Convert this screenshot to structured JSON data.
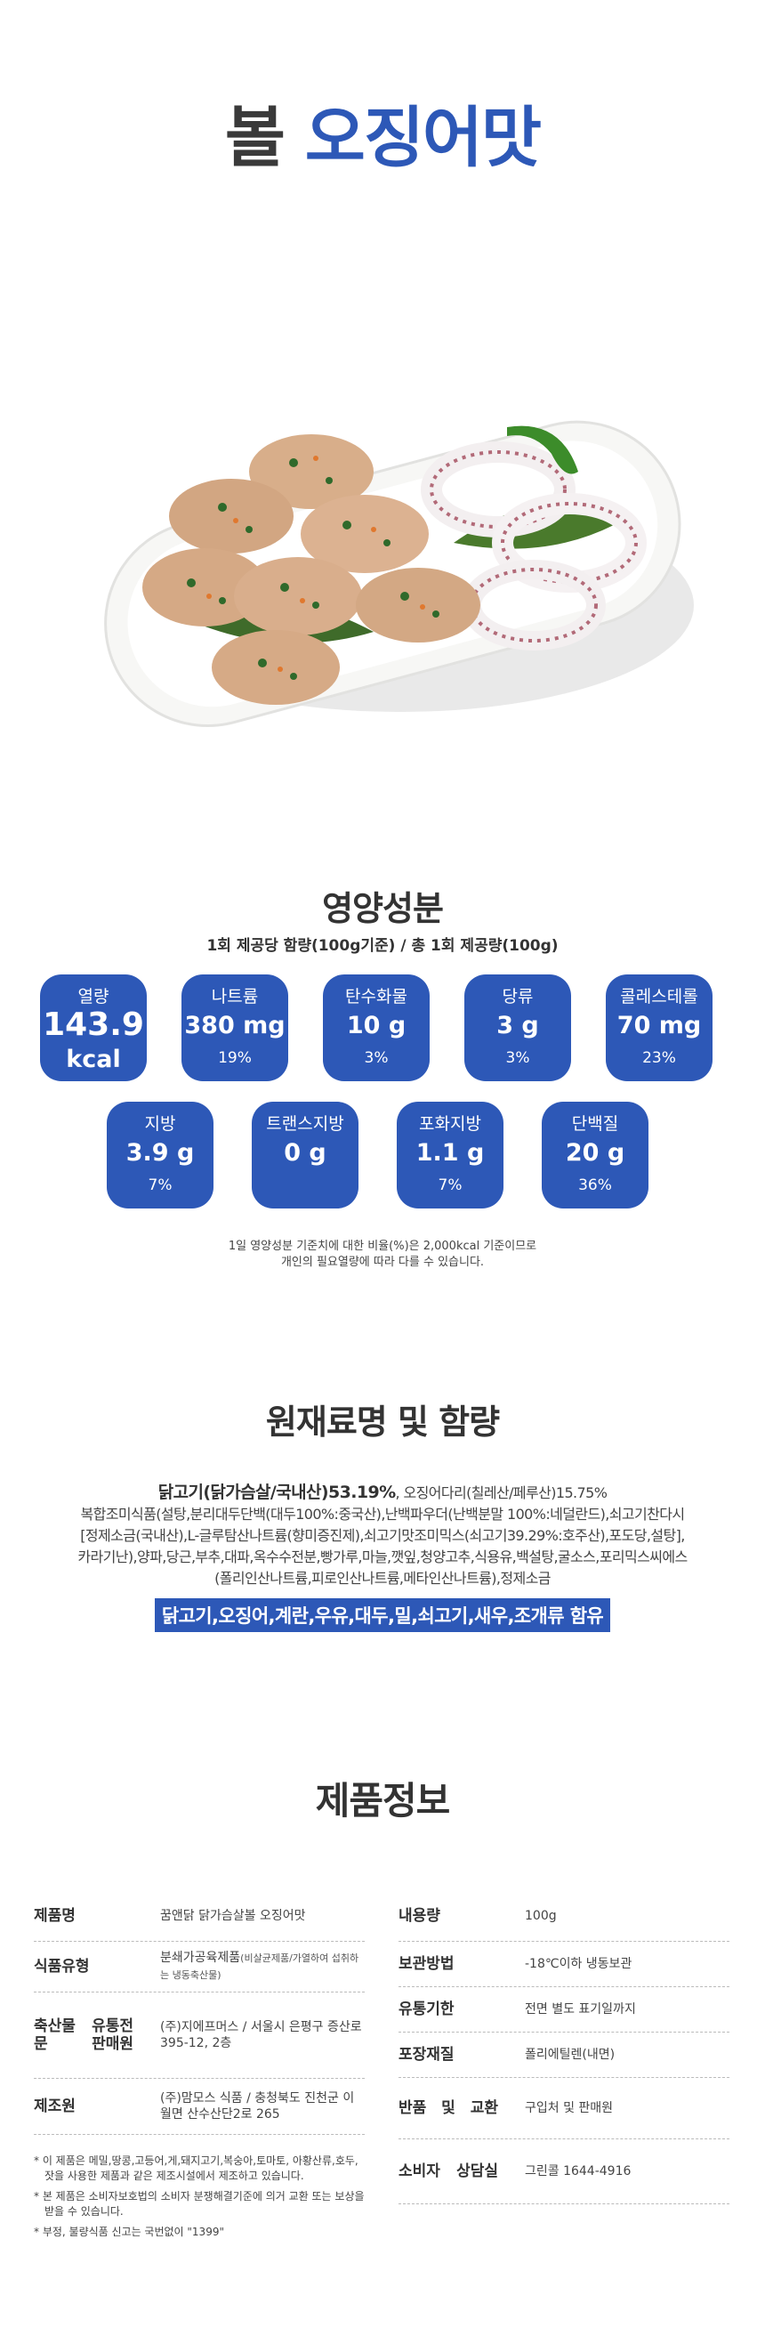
{
  "title": {
    "part1": "볼",
    "part2": "오징어맛"
  },
  "nutrition": {
    "heading": "영양성분",
    "subheading": "1회 제공당 함량(100g기준) / 총 1회 제공량(100g)",
    "calories": {
      "label": "열량",
      "value": "143.9",
      "unit": "kcal"
    },
    "row1": [
      {
        "label": "나트륨",
        "value": "380 mg",
        "pct": "19%"
      },
      {
        "label": "탄수화물",
        "value": "10 g",
        "pct": "3%"
      },
      {
        "label": "당류",
        "value": "3 g",
        "pct": "3%"
      },
      {
        "label": "콜레스테롤",
        "value": "70 mg",
        "pct": "23%"
      }
    ],
    "row2": [
      {
        "label": "지방",
        "value": "3.9 g",
        "pct": "7%"
      },
      {
        "label": "트랜스지방",
        "value": "0 g",
        "pct": ""
      },
      {
        "label": "포화지방",
        "value": "1.1 g",
        "pct": "7%"
      },
      {
        "label": "단백질",
        "value": "20 g",
        "pct": "36%"
      }
    ],
    "note1": "1일 영양성분 기준치에 대한 비율(%)은 2,000kcal 기준이므로",
    "note2": "개인의 필요열량에 따라 다를 수 있습니다.",
    "badge_color": "#2d58b7"
  },
  "ingredients": {
    "heading": "원재료명 및 함량",
    "main_bold": "닭고기(닭가슴살/국내산)53.19%",
    "line1_rest": ", 오징어다리(칠레산/페루산)15.75%",
    "line2": "복합조미식품(설탕,분리대두단백(대두100%:중국산),난백파우더(난백분말 100%:네덜란드),쇠고기찬다시",
    "line3": "[정제소금(국내산),L-글루탐산나트륨(향미증진제),쇠고기맛조미믹스(쇠고기39.29%:호주산),포도당,설탕],",
    "line4": "카라기난),양파,당근,부추,대파,옥수수전분,빵가루,마늘,깻잎,청양고추,식용유,백설탕,굴소스,포리믹스씨에스",
    "line5": "(폴리인산나트륨,피로인산나트륨,메타인산나트륨),정제소금",
    "allergy": "닭고기,오징어,계란,우유,대두,밀,쇠고기,새우,조개류 함유"
  },
  "product_info": {
    "heading": "제품정보",
    "left": [
      {
        "key": "제품명",
        "value": "꿈앤닭 닭가슴살볼 오징어맛"
      },
      {
        "key": "식품유형",
        "value": "분쇄가공육제품",
        "value_small": "(비살균제품/가열하여 섭취하는 냉동축산물)"
      },
      {
        "key": "축산물 유통전문 판매원",
        "value": "(주)지에프머스 / 서울시 은평구 증산로 395-12, 2층"
      },
      {
        "key": "제조원",
        "value": "(주)맘모스 식품 / 충청북도 진천군 이월면 산수산단2로 265"
      }
    ],
    "right": [
      {
        "key": "내용량",
        "value": "100g"
      },
      {
        "key": "보관방법",
        "value": "-18℃이하 냉동보관"
      },
      {
        "key": "유통기한",
        "value": "전면 별도 표기일까지"
      },
      {
        "key": "포장재질",
        "value": "폴리에틸렌(내면)"
      },
      {
        "key": "반품 및 교환",
        "value": "구입처 및 판매원"
      },
      {
        "key": "소비자 상담실",
        "value": "그린콜 1644-4916"
      }
    ],
    "notes": [
      "* 이 제품은 메밀,땅콩,고등어,게,돼지고기,복숭아,토마토, 아황산류,호두,잣을 사용한 제품과 같은 제조시설에서 제조하고 있습니다.",
      "* 본 제품은 소비자보호법의 소비자 분쟁해결기준에 의거 교환 또는 보상을 받을 수 있습니다.",
      "* 부정, 불량식품 신고는 국번없이 \"1399\""
    ]
  }
}
